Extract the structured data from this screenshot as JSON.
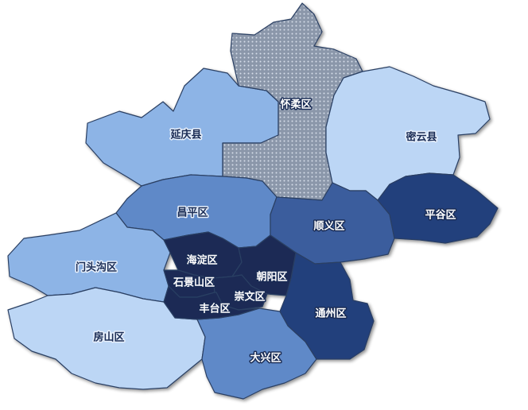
{
  "title": "",
  "colors": {
    "light": "#bcd6f5",
    "lightMedium": "#8db4e6",
    "medium": "#5f89c8",
    "mediumDark": "#3a5d9d",
    "dark": "#243f7c",
    "darkest": "#1a2c55",
    "dotted": "#8b97aa",
    "border": "#2b3f63"
  },
  "districts": [
    {
      "id": "huairou",
      "name": "怀柔区",
      "shade": "dotted",
      "labelColor": "#ffffff"
    },
    {
      "id": "yanqing",
      "name": "延庆县",
      "shade": "lightMedium",
      "labelColor": "#1a2c55"
    },
    {
      "id": "miyun",
      "name": "密云县",
      "shade": "light",
      "labelColor": "#1a2c55"
    },
    {
      "id": "changping",
      "name": "昌平区",
      "shade": "medium",
      "labelColor": "#1a2c55"
    },
    {
      "id": "shunyi",
      "name": "顺义区",
      "shade": "mediumDark",
      "labelColor": "#ffffff"
    },
    {
      "id": "pinggu",
      "name": "平谷区",
      "shade": "dark",
      "labelColor": "#ffffff"
    },
    {
      "id": "mentougou",
      "name": "门头沟区",
      "shade": "lightMedium",
      "labelColor": "#1a2c55"
    },
    {
      "id": "haidian",
      "name": "海淀区",
      "shade": "darkest",
      "labelColor": "#ffffff"
    },
    {
      "id": "shijingshan",
      "name": "石景山区",
      "shade": "darkest",
      "labelColor": "#ffffff"
    },
    {
      "id": "chaoyang",
      "name": "朝阳区",
      "shade": "darkest",
      "labelColor": "#ffffff"
    },
    {
      "id": "chongwen",
      "name": "崇文区",
      "shade": "darkest",
      "labelColor": "#ffffff"
    },
    {
      "id": "fengtai",
      "name": "丰台区",
      "shade": "darkest",
      "labelColor": "#ffffff"
    },
    {
      "id": "tongzhou",
      "name": "通州区",
      "shade": "dark",
      "labelColor": "#ffffff"
    },
    {
      "id": "fangshan",
      "name": "房山区",
      "shade": "light",
      "labelColor": "#1a2c55"
    },
    {
      "id": "daxing",
      "name": "大兴区",
      "shade": "medium",
      "labelColor": "#ffffff"
    }
  ]
}
